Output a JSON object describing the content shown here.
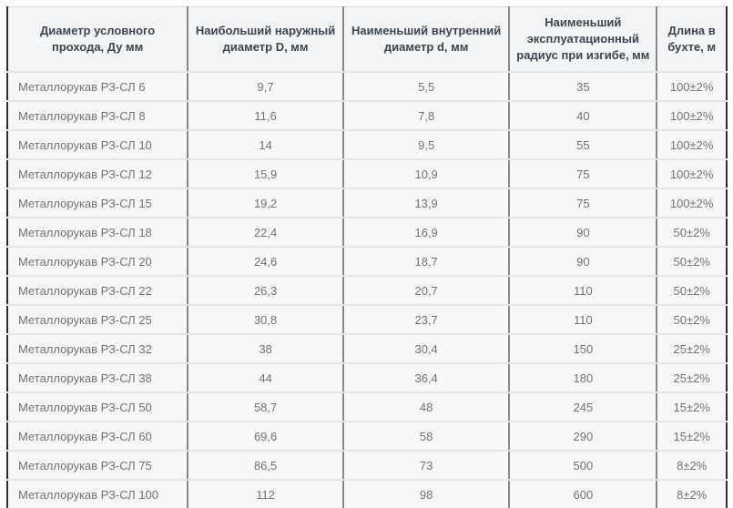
{
  "chart_data": {
    "type": "table",
    "title": "",
    "columns": [
      "Диаметр условного прохода, Ду мм",
      "Наибольший наружный диаметр D, мм",
      "Наименьший внутренний диаметр d, мм",
      "Наименьший эксплуатационный радиус при изгибе, мм",
      "Длина в бухте, м"
    ],
    "rows": [
      [
        "Металлорукав РЗ-СЛ 6",
        "9,7",
        "5,5",
        "35",
        "100±2%"
      ],
      [
        "Металлорукав РЗ-СЛ 8",
        "11,6",
        "7,8",
        "40",
        "100±2%"
      ],
      [
        "Металлорукав РЗ-СЛ 10",
        "14",
        "9,5",
        "55",
        "100±2%"
      ],
      [
        "Металлорукав РЗ-СЛ 12",
        "15,9",
        "10,9",
        "75",
        "100±2%"
      ],
      [
        "Металлорукав РЗ-СЛ 15",
        "19,2",
        "13,9",
        "75",
        "100±2%"
      ],
      [
        "Металлорукав РЗ-СЛ 18",
        "22,4",
        "16,9",
        "90",
        "50±2%"
      ],
      [
        "Металлорукав РЗ-СЛ 20",
        "24,6",
        "18,7",
        "90",
        "50±2%"
      ],
      [
        "Металлорукав РЗ-СЛ 22",
        "26,3",
        "20,7",
        "110",
        "50±2%"
      ],
      [
        "Металлорукав РЗ-СЛ 25",
        "30,8",
        "23,7",
        "110",
        "50±2%"
      ],
      [
        "Металлорукав РЗ-СЛ 32",
        "38",
        "30,4",
        "150",
        "25±2%"
      ],
      [
        "Металлорукав РЗ-СЛ 38",
        "44",
        "36,4",
        "180",
        "25±2%"
      ],
      [
        "Металлорукав РЗ-СЛ 50",
        "58,7",
        "48",
        "245",
        "15±2%"
      ],
      [
        "Металлорукав РЗ-СЛ 60",
        "69,6",
        "58",
        "290",
        "15±2%"
      ],
      [
        "Металлорукав РЗ-СЛ 75",
        "86,5",
        "73",
        "500",
        "8±2%"
      ],
      [
        "Металлорукав РЗ-СЛ 100",
        "112",
        "98",
        "600",
        "8±2%"
      ]
    ]
  },
  "colors": {
    "header_text": "#3c4650",
    "body_text": "#6f757b",
    "header_bg": "#f3f4f6",
    "cell_bg": "#f7f7f8",
    "outer_border": "#2e2e2e",
    "bottom_border": "#1c1c1c",
    "column_border": "#868686",
    "row_border": "#e4e5e5"
  }
}
